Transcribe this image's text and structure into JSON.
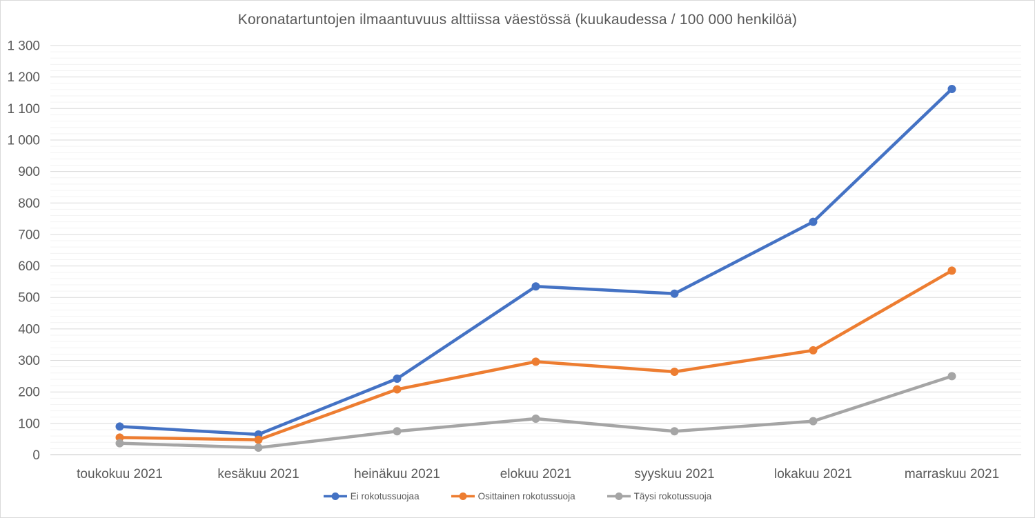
{
  "chart_data": {
    "type": "line",
    "title": "Koronatartuntojen ilmaantuvuus alttiissa väestössä (kuukaudessa / 100 000 henkilöä)",
    "categories": [
      "toukokuu 2021",
      "kesäkuu 2021",
      "heinäkuu 2021",
      "elokuu 2021",
      "syyskuu 2021",
      "lokakuu 2021",
      "marraskuu 2021"
    ],
    "series": [
      {
        "name": "Ei rokotussuojaa",
        "color": "#4472C4",
        "values": [
          90,
          65,
          242,
          535,
          512,
          740,
          1162
        ]
      },
      {
        "name": "Osittainen rokotussuoja",
        "color": "#ED7D31",
        "values": [
          55,
          48,
          208,
          296,
          264,
          332,
          585
        ]
      },
      {
        "name": "Täysi rokotussuoja",
        "color": "#A5A5A5",
        "values": [
          37,
          23,
          75,
          115,
          75,
          107,
          250
        ]
      }
    ],
    "xlabel": "",
    "ylabel": "",
    "y_axis": {
      "min": 0,
      "max": 1300,
      "major_step": 100,
      "minor_step": 20,
      "tick_labels": [
        "0",
        "100",
        "200",
        "300",
        "400",
        "500",
        "600",
        "700",
        "800",
        "900",
        "1 000",
        "1 100",
        "1 200",
        "1 300"
      ]
    },
    "grid": true,
    "legend_position": "bottom"
  },
  "colors": {
    "text": "#595959",
    "gridline_major": "#dadada",
    "gridline_minor": "#f3f3f3",
    "axis_line": "#bfbfbf",
    "background": "#ffffff"
  }
}
